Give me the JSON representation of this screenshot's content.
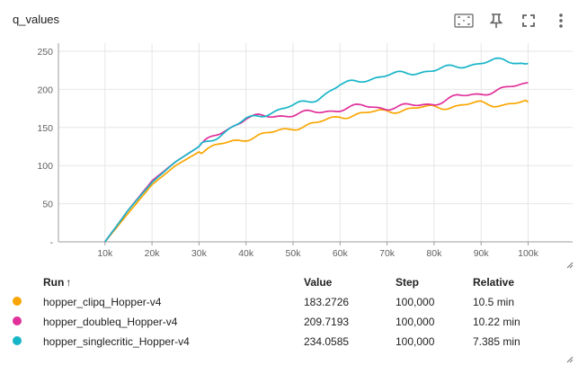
{
  "card": {
    "title": "q_values",
    "tools": [
      "fit-domain-icon",
      "pin-icon",
      "fullscreen-icon",
      "more-vert-icon"
    ]
  },
  "chart_data": {
    "type": "line",
    "title": "q_values",
    "xlabel": "",
    "ylabel": "",
    "xlim": [
      0,
      100000
    ],
    "ylim": [
      0,
      250
    ],
    "grid": true,
    "x_ticks": [
      "10k",
      "20k",
      "30k",
      "40k",
      "50k",
      "60k",
      "70k",
      "80k",
      "90k",
      "100k"
    ],
    "y_ticks": [
      "-",
      "50",
      "100",
      "150",
      "200",
      "250"
    ],
    "x": [
      10000,
      15000,
      20000,
      25000,
      30000,
      35000,
      40000,
      45000,
      50000,
      55000,
      60000,
      65000,
      70000,
      75000,
      80000,
      85000,
      90000,
      95000,
      100000
    ],
    "series": [
      {
        "name": "hopper_clipq_Hopper-v4",
        "color": "#f9a602",
        "values": [
          0,
          38,
          75,
          100,
          118,
          128,
          136,
          142,
          150,
          155,
          165,
          168,
          172,
          174,
          177,
          178,
          182,
          180,
          183
        ]
      },
      {
        "name": "hopper_doubleq_Hopper-v4",
        "color": "#e0309a",
        "values": [
          0,
          42,
          80,
          105,
          125,
          145,
          162,
          165,
          167,
          170,
          174,
          178,
          176,
          178,
          182,
          190,
          195,
          200,
          209
        ]
      },
      {
        "name": "hopper_singlecritic_Hopper-v4",
        "color": "#17b5c8",
        "values": [
          0,
          42,
          78,
          105,
          125,
          143,
          160,
          170,
          178,
          188,
          205,
          213,
          218,
          222,
          225,
          230,
          235,
          238,
          234
        ]
      }
    ]
  },
  "table": {
    "headers": {
      "run": "Run",
      "sort": "↑",
      "value": "Value",
      "step": "Step",
      "relative": "Relative"
    },
    "rows": [
      {
        "color": "#f9a602",
        "run": "hopper_clipq_Hopper-v4",
        "value": "183.2726",
        "step": "100,000",
        "relative": "10.5 min"
      },
      {
        "color": "#e0309a",
        "run": "hopper_doubleq_Hopper-v4",
        "value": "209.7193",
        "step": "100,000",
        "relative": "10.22 min"
      },
      {
        "color": "#17b5c8",
        "run": "hopper_singlecritic_Hopper-v4",
        "value": "234.0585",
        "step": "100,000",
        "relative": "7.385 min"
      }
    ]
  }
}
